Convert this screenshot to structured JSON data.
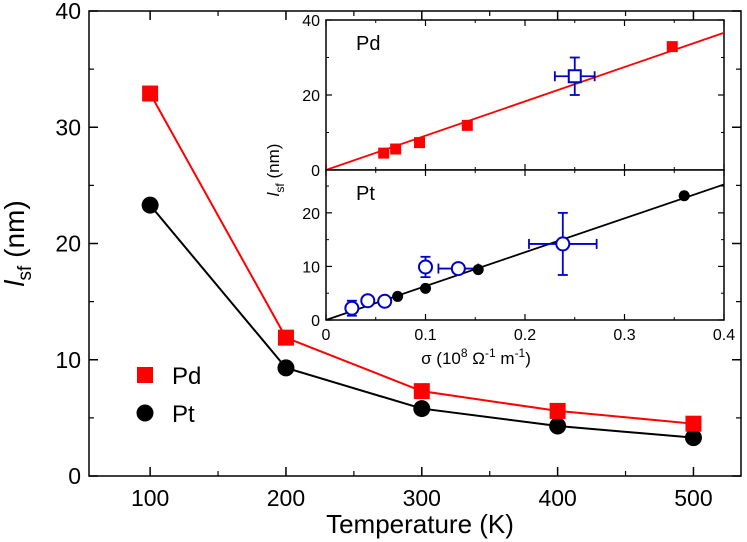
{
  "colors": {
    "pd": "#ff0000",
    "pt": "#000000",
    "open": "#0000cc"
  },
  "chart_data": [
    {
      "type": "line",
      "xlabel": "Temperature (K)",
      "ylabel": {
        "main": "l",
        "sub": "sf",
        "unit": "(nm)"
      },
      "xlim": [
        55,
        535
      ],
      "ylim": [
        0,
        40
      ],
      "x_ticks": [
        "100",
        "200",
        "300",
        "400",
        "500"
      ],
      "y_ticks": [
        "0",
        "10",
        "20",
        "30",
        "40"
      ],
      "x": [
        100,
        200,
        300,
        400,
        500
      ],
      "series": [
        {
          "name": "Pd",
          "marker": "square",
          "values": [
            32.9,
            11.9,
            7.3,
            5.6,
            4.5
          ]
        },
        {
          "name": "Pt",
          "marker": "circle",
          "values": [
            23.3,
            9.3,
            5.8,
            4.3,
            3.3
          ]
        }
      ],
      "legend_placement": "lower-left"
    },
    {
      "type": "scatter",
      "panel": "inset-top",
      "label": "Pd",
      "xlim": [
        0,
        0.4
      ],
      "ylim": [
        0,
        40
      ],
      "y_ticks": [
        "0",
        "20",
        "40"
      ],
      "fit_line": {
        "x": [
          0,
          0.4
        ],
        "y": [
          0,
          36.6
        ]
      },
      "filled_points": [
        {
          "x": 0.058,
          "y": 4.5
        },
        {
          "x": 0.07,
          "y": 5.6
        },
        {
          "x": 0.094,
          "y": 7.3
        },
        {
          "x": 0.142,
          "y": 11.9
        },
        {
          "x": 0.348,
          "y": 32.9
        }
      ],
      "open_points": [
        {
          "x": 0.25,
          "y": 25,
          "xerr": 0.02,
          "yerr": 5
        }
      ]
    },
    {
      "type": "scatter",
      "panel": "inset-bottom",
      "label": "Pt",
      "xlabel": {
        "prefix": "σ  (10",
        "exp1": "8",
        "mid1": " Ω",
        "exp2": "-1",
        "mid2": " m",
        "exp3": "-1",
        "suffix": ")"
      },
      "ylabel": {
        "main": "l",
        "sub": "sf",
        "unit": "(nm)"
      },
      "xlim": [
        0,
        0.4
      ],
      "ylim": [
        0,
        28
      ],
      "x_ticks": [
        "0",
        "0.1",
        "0.2",
        "0.3",
        "0.4"
      ],
      "y_ticks": [
        "0",
        "10",
        "20"
      ],
      "fit_line": {
        "x": [
          0,
          0.4
        ],
        "y": [
          0,
          25.3
        ]
      },
      "filled_points": [
        {
          "x": 0.072,
          "y": 4.4
        },
        {
          "x": 0.1,
          "y": 5.9
        },
        {
          "x": 0.153,
          "y": 9.4
        },
        {
          "x": 0.36,
          "y": 23.2
        }
      ],
      "open_points": [
        {
          "x": 0.026,
          "y": 2.2,
          "xerr": 0,
          "yerr": 1.4
        },
        {
          "x": 0.042,
          "y": 3.6,
          "xerr": 0,
          "yerr": 0
        },
        {
          "x": 0.059,
          "y": 3.5,
          "xerr": 0,
          "yerr": 0
        },
        {
          "x": 0.1,
          "y": 9.9,
          "xerr": 0,
          "yerr": 1.9
        },
        {
          "x": 0.133,
          "y": 9.6,
          "xerr": 0.02,
          "yerr": 0
        },
        {
          "x": 0.238,
          "y": 14.2,
          "xerr": 0.034,
          "yerr": 5.8
        }
      ]
    }
  ]
}
